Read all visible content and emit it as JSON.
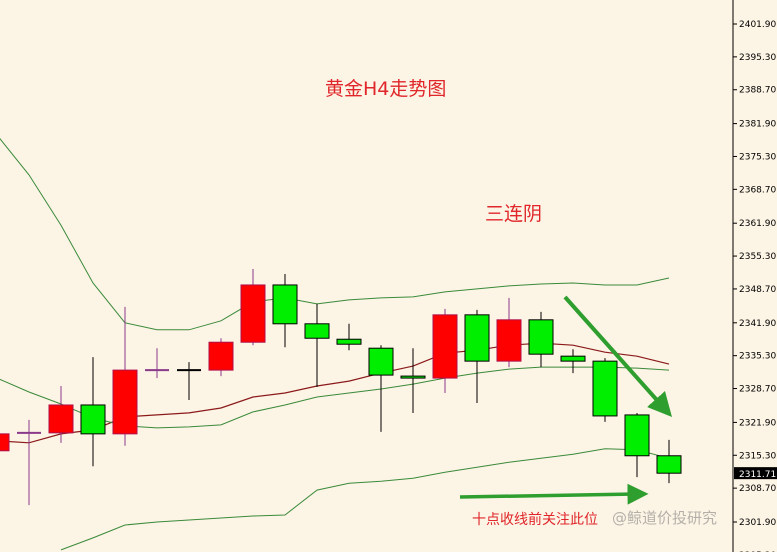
{
  "chart_data": {
    "type": "candlestick",
    "title": "黄金H4走势图",
    "annotations": [
      "三连阴",
      "十点收线前关注此位"
    ],
    "watermark": "@鲸道价投研究",
    "y_ticks": [
      "2401.90",
      "2395.30",
      "2388.70",
      "2381.90",
      "2375.30",
      "2368.70",
      "2361.90",
      "2355.30",
      "2348.70",
      "2341.90",
      "2335.30",
      "2328.70",
      "2321.90",
      "2315.30",
      "2308.70",
      "2301.90",
      "2295.30"
    ],
    "ylim": [
      2295.3,
      2406.6
    ],
    "current_price": "2311.71",
    "colors": {
      "up": "#ff0000",
      "down": "#00ee00",
      "doji": "#8b3a8b",
      "band": "#3a8a3a",
      "middle": "#8b1a1a",
      "arrow": "#2e9e2e",
      "text": "#e0262a",
      "background": "#fcf4e5"
    },
    "candles": [
      {
        "o": 2316.2,
        "h": 2319.8,
        "l": 2316.0,
        "c": 2319.6
      },
      {
        "o": 2319.8,
        "h": 2322.4,
        "l": 2305.3,
        "c": 2319.8
      },
      {
        "o": 2319.8,
        "h": 2329.2,
        "l": 2317.8,
        "c": 2325.4
      },
      {
        "o": 2325.4,
        "h": 2335.0,
        "l": 2313.1,
        "c": 2319.6
      },
      {
        "o": 2319.6,
        "h": 2345.1,
        "l": 2317.2,
        "c": 2332.4
      },
      {
        "o": 2332.4,
        "h": 2336.8,
        "l": 2330.8,
        "c": 2332.4
      },
      {
        "o": 2332.4,
        "h": 2334.0,
        "l": 2326.4,
        "c": 2332.4
      },
      {
        "o": 2332.4,
        "h": 2338.8,
        "l": 2331.2,
        "c": 2338.0
      },
      {
        "o": 2338.0,
        "h": 2352.7,
        "l": 2337.4,
        "c": 2349.5
      },
      {
        "o": 2349.5,
        "h": 2351.7,
        "l": 2337.0,
        "c": 2341.7
      },
      {
        "o": 2341.7,
        "h": 2345.7,
        "l": 2329.0,
        "c": 2338.8
      },
      {
        "o": 2338.6,
        "h": 2341.7,
        "l": 2336.4,
        "c": 2337.6
      },
      {
        "o": 2336.8,
        "h": 2337.4,
        "l": 2320.0,
        "c": 2331.4
      },
      {
        "o": 2331.2,
        "h": 2336.8,
        "l": 2323.8,
        "c": 2330.8
      },
      {
        "o": 2330.8,
        "h": 2344.7,
        "l": 2327.8,
        "c": 2343.5
      },
      {
        "o": 2343.5,
        "h": 2344.5,
        "l": 2325.8,
        "c": 2334.2
      },
      {
        "o": 2334.2,
        "h": 2346.9,
        "l": 2333.0,
        "c": 2342.5
      },
      {
        "o": 2342.5,
        "h": 2344.1,
        "l": 2333.0,
        "c": 2335.6
      },
      {
        "o": 2335.2,
        "h": 2336.6,
        "l": 2331.8,
        "c": 2334.2
      },
      {
        "o": 2334.2,
        "h": 2334.8,
        "l": 2322.0,
        "c": 2323.2
      },
      {
        "o": 2323.4,
        "h": 2323.8,
        "l": 2310.9,
        "c": 2315.2
      },
      {
        "o": 2315.2,
        "h": 2318.4,
        "l": 2309.7,
        "c": 2311.7
      }
    ],
    "bands": {
      "upper_outer": [
        2379.6,
        2371.6,
        2361.5,
        2349.9,
        2341.9,
        2340.5,
        2340.5,
        2342.3,
        2346.1,
        2346.9,
        2345.7,
        2346.5,
        2346.9,
        2347.1,
        2348.1,
        2348.7,
        2349.3,
        2349.7,
        2349.9,
        2349.5,
        2349.5,
        2350.9
      ],
      "middle": [
        2318.2,
        2317.8,
        2319.6,
        2320.4,
        2323.0,
        2323.4,
        2323.8,
        2324.8,
        2327.0,
        2327.8,
        2329.2,
        2330.2,
        2331.8,
        2333.2,
        2335.8,
        2336.4,
        2337.4,
        2337.8,
        2337.4,
        2336.0,
        2335.2,
        2333.6
      ],
      "inner": [
        2330.8,
        2328.0,
        2325.6,
        2322.8,
        2321.2,
        2320.8,
        2321.0,
        2321.4,
        2324.0,
        2325.4,
        2327.0,
        2327.8,
        2328.6,
        2329.6,
        2330.8,
        2331.8,
        2332.6,
        2333.0,
        2333.0,
        2333.0,
        2332.8,
        2332.4
      ],
      "lower": [
        null,
        null,
        2296.3,
        2298.7,
        2301.3,
        2301.9,
        2302.3,
        2302.7,
        2303.1,
        2303.3,
        2308.3,
        2309.7,
        2310.1,
        2310.7,
        2311.9,
        2312.9,
        2313.9,
        2314.7,
        2315.5,
        2316.6,
        2316.4,
        2314.7
      ]
    }
  }
}
